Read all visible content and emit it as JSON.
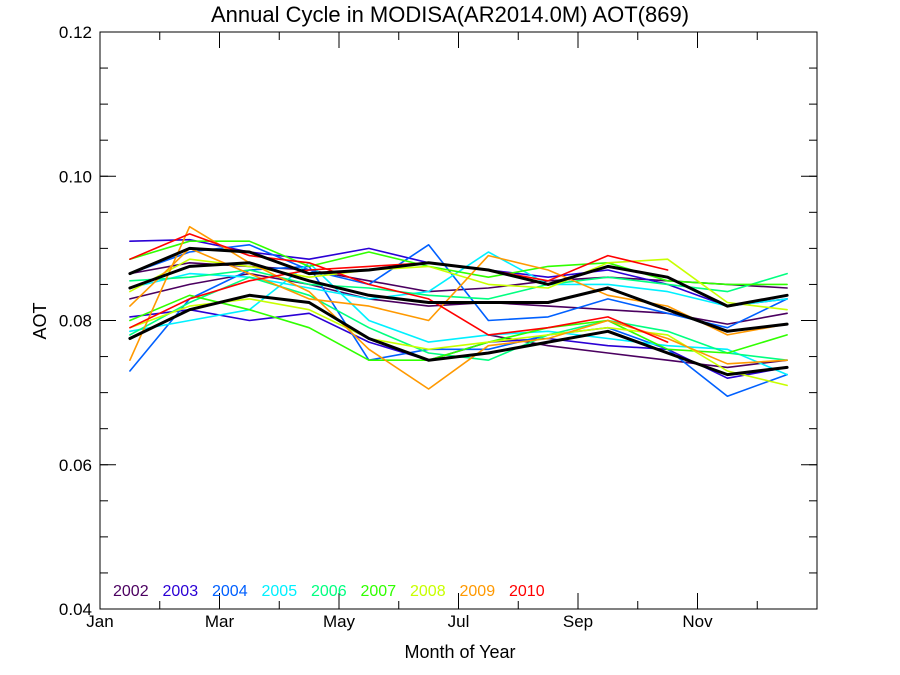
{
  "chart_data": {
    "type": "line",
    "title": "Annual Cycle in MODISA(AR2014.0M) AOT(869)",
    "xlabel": "Month of Year",
    "ylabel": "AOT",
    "xlim": [
      0,
      12
    ],
    "ylim": [
      0.04,
      0.12
    ],
    "x_ticks": [
      {
        "x": 0,
        "label": "Jan"
      },
      {
        "x": 2,
        "label": "Mar"
      },
      {
        "x": 4,
        "label": "May"
      },
      {
        "x": 6,
        "label": "Jul"
      },
      {
        "x": 8,
        "label": "Sep"
      },
      {
        "x": 10,
        "label": "Nov"
      }
    ],
    "y_ticks": [
      {
        "y": 0.04,
        "label": "0.04"
      },
      {
        "y": 0.06,
        "label": "0.06"
      },
      {
        "y": 0.08,
        "label": "0.08"
      },
      {
        "y": 0.1,
        "label": "0.10"
      },
      {
        "y": 0.12,
        "label": "0.12"
      }
    ],
    "y_minor_step": 0.005,
    "x_minor_step": 1,
    "grid": false,
    "legend_position": "bottom-left",
    "x": [
      0.5,
      1.5,
      2.5,
      3.5,
      4.5,
      5.5,
      6.5,
      7.5,
      8.5,
      9.5,
      10.5,
      11.5
    ],
    "series": [
      {
        "name": "2002",
        "color": "#4b0060",
        "values": [
          0.0865,
          0.088,
          0.0875,
          0.087,
          0.0855,
          0.084,
          0.0845,
          0.0855,
          0.086,
          0.0855,
          0.085,
          0.0845
        ]
      },
      {
        "name": "2002",
        "color": "#4b0060",
        "values": [
          0.083,
          0.085,
          0.0865,
          0.085,
          0.083,
          0.082,
          0.0825,
          0.082,
          0.0815,
          0.081,
          0.0795,
          0.081
        ]
      },
      {
        "name": "2002",
        "color": "#4b0060",
        "values": [
          null,
          null,
          null,
          null,
          null,
          null,
          0.078,
          0.0765,
          0.0755,
          0.0745,
          0.0735,
          0.0745
        ]
      },
      {
        "name": "2003",
        "color": "#2a00d5",
        "values": [
          0.091,
          0.0912,
          0.0895,
          0.0885,
          0.09,
          0.088,
          0.087,
          0.086,
          0.087,
          0.085,
          0.082,
          0.083
        ]
      },
      {
        "name": "2003",
        "color": "#2a00d5",
        "values": [
          0.0805,
          0.0815,
          0.08,
          0.081,
          0.077,
          0.0745,
          0.077,
          0.0775,
          0.0765,
          0.076,
          0.072,
          0.0735
        ]
      },
      {
        "name": "2004",
        "color": "#0060ff",
        "values": [
          0.073,
          0.083,
          0.087,
          0.0875,
          0.0745,
          0.076,
          0.076,
          0.078,
          0.079,
          0.076,
          0.0695,
          0.0725
        ]
      },
      {
        "name": "2004",
        "color": "#0060ff",
        "values": [
          0.0865,
          0.0895,
          0.0905,
          0.087,
          0.085,
          0.0905,
          0.08,
          0.0805,
          0.083,
          0.081,
          0.079,
          0.083
        ]
      },
      {
        "name": "2005",
        "color": "#00f0ff",
        "values": [
          0.0785,
          0.08,
          0.0815,
          0.088,
          0.08,
          0.077,
          0.078,
          0.0785,
          0.0775,
          0.0765,
          0.076,
          0.0725
        ]
      },
      {
        "name": "2005",
        "color": "#00f0ff",
        "values": [
          0.0845,
          0.0865,
          0.086,
          0.0845,
          0.083,
          0.084,
          0.0895,
          0.085,
          0.085,
          0.084,
          0.082,
          0.083
        ]
      },
      {
        "name": "2006",
        "color": "#00ff80",
        "values": [
          0.078,
          0.0825,
          0.086,
          0.0835,
          0.079,
          0.0755,
          0.0745,
          0.078,
          0.08,
          0.0785,
          0.0755,
          0.0745
        ]
      },
      {
        "name": "2006",
        "color": "#00ff80",
        "values": [
          0.0855,
          0.086,
          0.087,
          0.085,
          0.0845,
          0.0835,
          0.083,
          0.085,
          0.086,
          0.085,
          0.084,
          0.0865
        ]
      },
      {
        "name": "2007",
        "color": "#30ff00",
        "values": [
          0.0885,
          0.091,
          0.091,
          0.0875,
          0.0895,
          0.0875,
          0.086,
          0.0875,
          0.088,
          0.0855,
          0.085,
          0.085
        ]
      },
      {
        "name": "2007",
        "color": "#30ff00",
        "values": [
          0.08,
          0.0835,
          0.0815,
          0.079,
          0.0745,
          0.0745,
          0.077,
          0.079,
          0.08,
          0.076,
          0.0755,
          0.078
        ]
      },
      {
        "name": "2008",
        "color": "#c8ff00",
        "values": [
          0.084,
          0.0885,
          0.0875,
          0.086,
          0.087,
          0.0875,
          0.085,
          0.0845,
          0.088,
          0.0885,
          0.0825,
          0.0815
        ]
      },
      {
        "name": "2008",
        "color": "#c8ff00",
        "values": [
          0.079,
          0.082,
          0.083,
          0.0815,
          0.0775,
          0.076,
          0.077,
          0.078,
          0.079,
          0.078,
          0.073,
          0.071
        ]
      },
      {
        "name": "2009",
        "color": "#ff9900",
        "values": [
          0.0745,
          0.093,
          0.088,
          0.084,
          0.076,
          0.0705,
          0.0765,
          0.0775,
          0.08,
          0.0775,
          0.074,
          0.0745
        ]
      },
      {
        "name": "2009",
        "color": "#ff9900",
        "values": [
          0.082,
          0.09,
          0.0865,
          0.083,
          0.082,
          0.08,
          0.089,
          0.087,
          0.0835,
          0.082,
          0.078,
          0.0795
        ]
      },
      {
        "name": "2010",
        "color": "#ff0000",
        "values": [
          0.079,
          0.083,
          0.0855,
          0.087,
          0.0875,
          0.088,
          0.087,
          0.0855,
          0.089,
          0.087,
          null,
          null
        ]
      },
      {
        "name": "2010",
        "color": "#ff0000",
        "values": [
          0.0885,
          0.092,
          0.089,
          0.088,
          0.085,
          0.083,
          0.078,
          0.079,
          0.0805,
          0.077,
          null,
          null
        ]
      },
      {
        "name": "",
        "color": "#000000",
        "emphasis": true,
        "values": [
          0.0865,
          0.09,
          0.0895,
          0.0865,
          0.087,
          0.088,
          0.087,
          0.085,
          0.0875,
          0.086,
          0.082,
          0.0835
        ]
      },
      {
        "name": "",
        "color": "#000000",
        "emphasis": true,
        "values": [
          0.0845,
          0.0875,
          0.088,
          0.0855,
          0.0835,
          0.0825,
          0.0825,
          0.0825,
          0.0845,
          0.0815,
          0.0785,
          0.0795
        ]
      },
      {
        "name": "",
        "color": "#000000",
        "emphasis": true,
        "values": [
          0.0775,
          0.0815,
          0.0835,
          0.0825,
          0.0775,
          0.0745,
          0.0755,
          0.077,
          0.0785,
          0.0755,
          0.0725,
          0.0735
        ]
      }
    ],
    "legend": [
      {
        "label": "2002",
        "color": "#4b0060"
      },
      {
        "label": "2003",
        "color": "#2a00d5"
      },
      {
        "label": "2004",
        "color": "#0060ff"
      },
      {
        "label": "2005",
        "color": "#00f0ff"
      },
      {
        "label": "2006",
        "color": "#00ff80"
      },
      {
        "label": "2007",
        "color": "#30ff00"
      },
      {
        "label": "2008",
        "color": "#c8ff00"
      },
      {
        "label": "2009",
        "color": "#ff9900"
      },
      {
        "label": "2010",
        "color": "#ff0000"
      }
    ]
  }
}
